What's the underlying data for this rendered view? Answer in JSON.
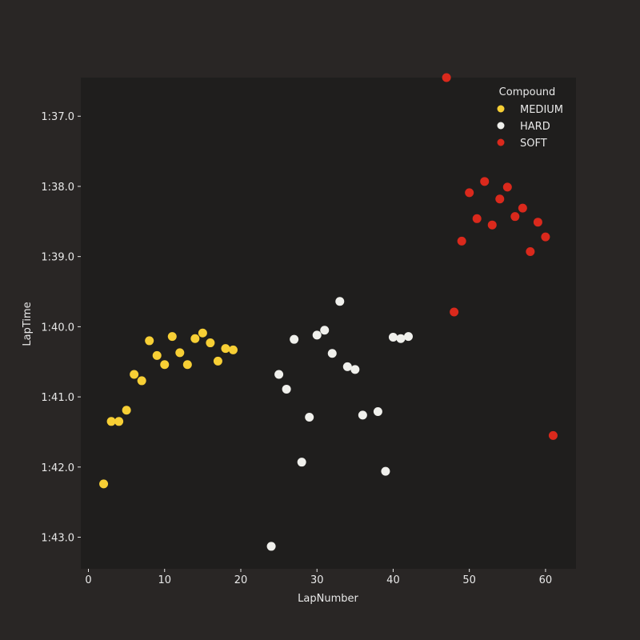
{
  "chart_data": {
    "type": "scatter",
    "title": "",
    "xlabel": "LapNumber",
    "ylabel": "LapTime",
    "xlim": [
      -1,
      64
    ],
    "ylim_seconds": [
      96.45,
      103.45
    ],
    "y_inverted": true,
    "grid": false,
    "x_ticks": [
      0,
      10,
      20,
      30,
      40,
      50,
      60
    ],
    "y_ticks": [
      {
        "value": 97,
        "label": "1:37.0"
      },
      {
        "value": 98,
        "label": "1:38.0"
      },
      {
        "value": 99,
        "label": "1:39.0"
      },
      {
        "value": 100,
        "label": "1:40.0"
      },
      {
        "value": 101,
        "label": "1:41.0"
      },
      {
        "value": 102,
        "label": "1:42.0"
      },
      {
        "value": 103,
        "label": "1:43.0"
      }
    ],
    "legend": {
      "title": "Compound",
      "placement": "top-right"
    },
    "series": [
      {
        "name": "MEDIUM",
        "color": "#f7cf35",
        "points": [
          [
            2,
            102.24
          ],
          [
            3,
            101.35
          ],
          [
            4,
            101.35
          ],
          [
            5,
            101.19
          ],
          [
            6,
            100.68
          ],
          [
            7,
            100.77
          ],
          [
            8,
            100.2
          ],
          [
            9,
            100.41
          ],
          [
            10,
            100.54
          ],
          [
            11,
            100.14
          ],
          [
            12,
            100.37
          ],
          [
            13,
            100.54
          ],
          [
            14,
            100.17
          ],
          [
            15,
            100.09
          ],
          [
            16,
            100.23
          ],
          [
            17,
            100.49
          ],
          [
            18,
            100.31
          ],
          [
            19,
            100.33
          ]
        ]
      },
      {
        "name": "HARD",
        "color": "#f0f0ec",
        "points": [
          [
            24,
            103.13
          ],
          [
            25,
            100.68
          ],
          [
            26,
            100.89
          ],
          [
            27,
            100.18
          ],
          [
            28,
            101.93
          ],
          [
            29,
            101.29
          ],
          [
            30,
            100.12
          ],
          [
            31,
            100.05
          ],
          [
            32,
            100.38
          ],
          [
            33,
            99.64
          ],
          [
            34,
            100.57
          ],
          [
            35,
            100.61
          ],
          [
            36,
            101.26
          ],
          [
            38,
            101.21
          ],
          [
            39,
            102.06
          ],
          [
            40,
            100.15
          ],
          [
            41,
            100.17
          ],
          [
            42,
            100.14
          ]
        ]
      },
      {
        "name": "SOFT",
        "color": "#da291c",
        "points": [
          [
            47,
            96.45
          ],
          [
            48,
            99.79
          ],
          [
            49,
            98.78
          ],
          [
            50,
            98.09
          ],
          [
            51,
            98.46
          ],
          [
            52,
            97.93
          ],
          [
            53,
            98.55
          ],
          [
            54,
            98.18
          ],
          [
            55,
            98.01
          ],
          [
            56,
            98.43
          ],
          [
            57,
            98.31
          ],
          [
            58,
            98.93
          ],
          [
            59,
            98.51
          ],
          [
            60,
            98.72
          ],
          [
            61,
            101.55
          ]
        ]
      }
    ]
  }
}
